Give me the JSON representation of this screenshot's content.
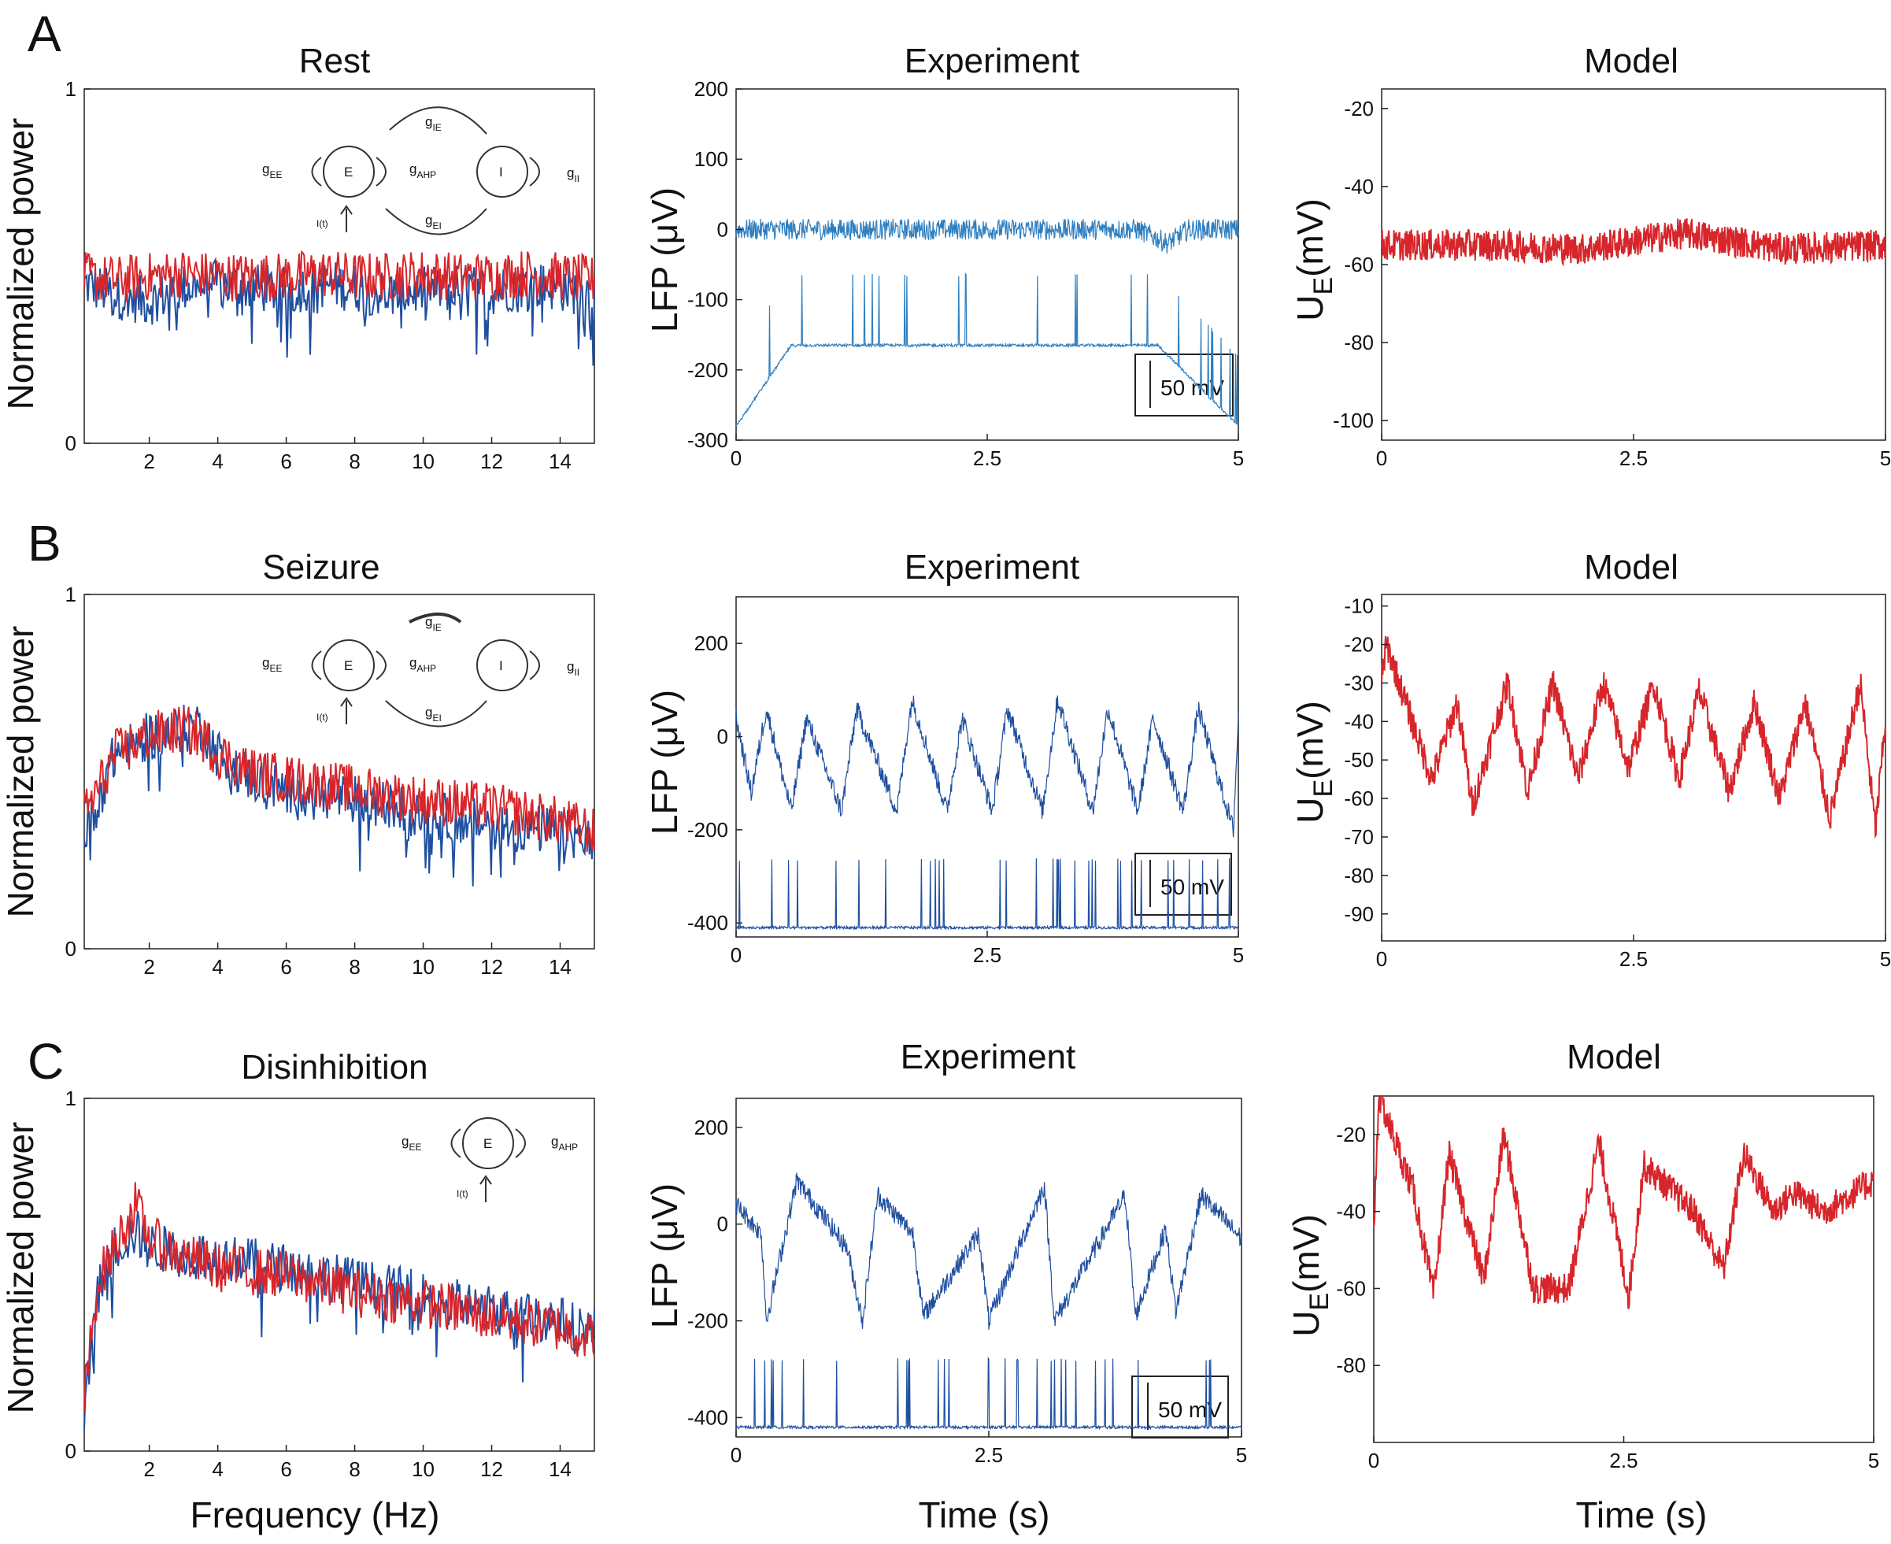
{
  "figure": {
    "colors": {
      "experiment_blue": "#1f4fa0",
      "lfp_blue": "#2f7fc0",
      "model_red": "#d7262b",
      "axis": "#222222"
    },
    "rows": [
      {
        "letter": "A",
        "spectrum": {
          "title": "Rest",
          "ylabel": "Normalized power",
          "xlabel": "",
          "diagram": {
            "nodes": [
              "E",
              "I"
            ],
            "labels": {
              "gEE": "g",
              "gEE_sub": "EE",
              "gAHP": "g",
              "gAHP_sub": "AHP",
              "gIE": "g",
              "gIE_sub": "IE",
              "gEI": "g",
              "gEI_sub": "EI",
              "gII": "g",
              "gII_sub": "II",
              "input": "I(t)"
            }
          }
        },
        "experiment": {
          "title": "Experiment",
          "ylabel": "LFP (μV)",
          "xlabel": "",
          "scalebar": "50 mV"
        },
        "model": {
          "title": "Model",
          "ylabel": "U",
          "ylabel_sub": "E",
          "ylabel_unit": "(mV)",
          "xlabel": ""
        }
      },
      {
        "letter": "B",
        "spectrum": {
          "title": "Seizure",
          "ylabel": "Normalized power",
          "xlabel": "",
          "diagram": {
            "nodes": [
              "E",
              "I"
            ],
            "labels": {
              "gEE": "g",
              "gEE_sub": "EE",
              "gAHP": "g",
              "gAHP_sub": "AHP",
              "gIE": "g",
              "gIE_sub": "IE",
              "gEI": "g",
              "gEI_sub": "EI",
              "gII": "g",
              "gII_sub": "II",
              "input": "I(t)"
            }
          }
        },
        "experiment": {
          "title": "Experiment",
          "ylabel": "LFP (μV)",
          "xlabel": "",
          "scalebar": "50 mV"
        },
        "model": {
          "title": "Model",
          "ylabel": "U",
          "ylabel_sub": "E",
          "ylabel_unit": "(mV)",
          "xlabel": ""
        }
      },
      {
        "letter": "C",
        "spectrum": {
          "title": "Disinhibition",
          "ylabel": "Normalized power",
          "xlabel": "Frequency (Hz)",
          "diagram": {
            "nodes": [
              "E"
            ],
            "labels": {
              "gEE": "g",
              "gEE_sub": "EE",
              "gAHP": "g",
              "gAHP_sub": "AHP",
              "input": "I(t)"
            }
          }
        },
        "experiment": {
          "title": "Experiment",
          "ylabel": "LFP (μV)",
          "xlabel": "Time (s)",
          "scalebar": "50 mV"
        },
        "model": {
          "title": "Model",
          "ylabel": "U",
          "ylabel_sub": "E",
          "ylabel_unit": "(mV)",
          "xlabel": "Time (s)"
        }
      }
    ]
  },
  "chart_data": [
    {
      "type": "line",
      "panel": "A-spectrum",
      "title": "Rest",
      "xlabel": "",
      "ylabel": "Normalized power",
      "xlim": [
        0.1,
        15
      ],
      "ylim": [
        0,
        1
      ],
      "xticks": [
        2,
        4,
        6,
        8,
        10,
        12,
        14
      ],
      "yticks": [
        0,
        1
      ],
      "series": [
        {
          "color": "blue",
          "x": [
            0.1,
            1,
            2,
            3,
            4,
            5,
            6,
            7,
            8,
            9,
            10,
            11,
            12,
            13,
            14,
            15
          ],
          "y": [
            0.45,
            0.42,
            0.4,
            0.44,
            0.45,
            0.44,
            0.43,
            0.45,
            0.44,
            0.42,
            0.43,
            0.44,
            0.43,
            0.45,
            0.44,
            0.42
          ]
        },
        {
          "color": "red",
          "x": [
            0.1,
            1,
            2,
            3,
            4,
            5,
            6,
            7,
            8,
            9,
            10,
            11,
            12,
            13,
            14,
            15
          ],
          "y": [
            0.47,
            0.46,
            0.47,
            0.48,
            0.47,
            0.47,
            0.47,
            0.48,
            0.47,
            0.47,
            0.48,
            0.47,
            0.47,
            0.48,
            0.47,
            0.46
          ]
        }
      ]
    },
    {
      "type": "line",
      "panel": "A-experiment",
      "title": "Experiment",
      "xlabel": "",
      "ylabel": "LFP (μV)",
      "xlim": [
        0,
        5
      ],
      "ylim": [
        -300,
        200
      ],
      "xticks": [
        0,
        2.5,
        5
      ],
      "yticks": [
        -300,
        -200,
        -100,
        0,
        100,
        200
      ],
      "series": [
        {
          "color": "lfp",
          "x": [
            0,
            1,
            2,
            3,
            4,
            4.3,
            4.5,
            5
          ],
          "y": [
            0,
            0,
            0,
            0,
            0,
            -20,
            0,
            0
          ]
        },
        {
          "color": "lfp",
          "x": [
            0,
            0.55,
            1.1,
            1.45,
            1.75,
            2.3,
            4.2,
            5
          ],
          "y": [
            -280,
            -165,
            -165,
            -165,
            -165,
            -165,
            -165,
            -280
          ]
        }
      ]
    },
    {
      "type": "line",
      "panel": "A-model",
      "title": "Model",
      "xlabel": "",
      "ylabel": "U_E(mV)",
      "xlim": [
        0,
        5
      ],
      "ylim": [
        -105,
        -15
      ],
      "xticks": [
        0,
        2.5,
        5
      ],
      "yticks": [
        -100,
        -80,
        -60,
        -40,
        -20
      ],
      "series": [
        {
          "color": "red",
          "x": [
            0,
            1,
            2,
            3,
            4,
            5
          ],
          "y": [
            -55,
            -55,
            -56,
            -52,
            -56,
            -55
          ]
        }
      ]
    },
    {
      "type": "line",
      "panel": "B-spectrum",
      "title": "Seizure",
      "xlabel": "",
      "ylabel": "Normalized power",
      "xlim": [
        0.1,
        15
      ],
      "ylim": [
        0,
        1
      ],
      "xticks": [
        2,
        4,
        6,
        8,
        10,
        12,
        14
      ],
      "yticks": [
        0,
        1
      ],
      "series": [
        {
          "color": "blue",
          "x": [
            0.1,
            0.5,
            1,
            2,
            3,
            3.5,
            4,
            5,
            6,
            8,
            10,
            12,
            14,
            15
          ],
          "y": [
            0.3,
            0.42,
            0.55,
            0.6,
            0.62,
            0.63,
            0.55,
            0.48,
            0.45,
            0.42,
            0.38,
            0.35,
            0.33,
            0.3
          ]
        },
        {
          "color": "red",
          "x": [
            0.1,
            0.5,
            1,
            2,
            3,
            3.5,
            4,
            5,
            6,
            8,
            10,
            12,
            14,
            15
          ],
          "y": [
            0.38,
            0.45,
            0.55,
            0.6,
            0.62,
            0.6,
            0.55,
            0.5,
            0.48,
            0.45,
            0.42,
            0.4,
            0.36,
            0.33
          ]
        }
      ]
    },
    {
      "type": "line",
      "panel": "B-experiment",
      "title": "Experiment",
      "xlabel": "",
      "ylabel": "LFP (μV)",
      "xlim": [
        0,
        5
      ],
      "ylim": [
        -430,
        300
      ],
      "xticks": [
        0,
        2.5,
        5
      ],
      "yticks": [
        -400,
        -200,
        0,
        200
      ],
      "series": [
        {
          "color": "blue",
          "x": [
            0,
            0.15,
            0.3,
            0.55,
            0.7,
            1.05,
            1.2,
            1.6,
            1.75,
            2.1,
            2.25,
            2.55,
            2.7,
            3.05,
            3.2,
            3.55,
            3.7,
            4,
            4.15,
            4.45,
            4.6,
            4.95,
            5
          ],
          "y": [
            40,
            -120,
            60,
            -160,
            40,
            -160,
            60,
            -160,
            80,
            -160,
            40,
            -160,
            60,
            -160,
            80,
            -160,
            60,
            -160,
            40,
            -160,
            60,
            -200,
            40
          ]
        },
        {
          "color": "blue",
          "x": [
            0,
            1,
            2,
            3,
            4,
            5
          ],
          "y": [
            -410,
            -410,
            -410,
            -410,
            -410,
            -410
          ]
        }
      ]
    },
    {
      "type": "line",
      "panel": "B-model",
      "title": "Model",
      "xlabel": "",
      "ylabel": "U_E(mV)",
      "xlim": [
        0,
        5
      ],
      "ylim": [
        -97,
        -7
      ],
      "xticks": [
        0,
        2.5,
        5
      ],
      "yticks": [
        -90,
        -80,
        -70,
        -60,
        -50,
        -40,
        -30,
        -20,
        -10
      ],
      "series": [
        {
          "color": "red",
          "x": [
            0,
            0.05,
            0.3,
            0.5,
            0.75,
            0.9,
            1.25,
            1.45,
            1.7,
            1.95,
            2.2,
            2.45,
            2.7,
            2.95,
            3.15,
            3.45,
            3.7,
            3.95,
            4.2,
            4.45,
            4.75,
            4.9,
            5
          ],
          "y": [
            -28,
            -20,
            -40,
            -55,
            -35,
            -62,
            -30,
            -58,
            -30,
            -55,
            -30,
            -52,
            -30,
            -55,
            -32,
            -58,
            -35,
            -60,
            -35,
            -65,
            -30,
            -68,
            -40
          ]
        }
      ]
    },
    {
      "type": "line",
      "panel": "C-spectrum",
      "title": "Disinhibition",
      "xlabel": "Frequency (Hz)",
      "ylabel": "Normalized power",
      "xlim": [
        0.1,
        15
      ],
      "ylim": [
        0,
        1
      ],
      "xticks": [
        2,
        4,
        6,
        8,
        10,
        12,
        14
      ],
      "yticks": [
        0,
        1
      ],
      "series": [
        {
          "color": "blue",
          "x": [
            0.1,
            0.5,
            1,
            1.6,
            2,
            3,
            4,
            6,
            8,
            10,
            12,
            14,
            15
          ],
          "y": [
            0.1,
            0.45,
            0.58,
            0.62,
            0.58,
            0.56,
            0.55,
            0.52,
            0.48,
            0.44,
            0.4,
            0.37,
            0.34
          ]
        },
        {
          "color": "red",
          "x": [
            0.1,
            0.5,
            1,
            1.6,
            2,
            3,
            4,
            6,
            8,
            10,
            12,
            14,
            15
          ],
          "y": [
            0.15,
            0.48,
            0.58,
            0.7,
            0.6,
            0.55,
            0.52,
            0.5,
            0.45,
            0.42,
            0.38,
            0.35,
            0.32
          ]
        }
      ]
    },
    {
      "type": "line",
      "panel": "C-experiment",
      "title": "Experiment",
      "xlabel": "Time (s)",
      "ylabel": "LFP (μV)",
      "xlim": [
        0,
        5
      ],
      "ylim": [
        -440,
        260
      ],
      "xticks": [
        0,
        2.5,
        5
      ],
      "yticks": [
        -400,
        -200,
        0,
        200
      ],
      "series": [
        {
          "color": "blue",
          "x": [
            0,
            0.25,
            0.3,
            0.6,
            1.1,
            1.25,
            1.4,
            1.75,
            1.85,
            2.4,
            2.5,
            3.05,
            3.15,
            3.85,
            3.95,
            4.25,
            4.35,
            4.6,
            5
          ],
          "y": [
            40,
            -20,
            -200,
            90,
            -50,
            -200,
            60,
            -20,
            -190,
            -20,
            -200,
            80,
            -200,
            60,
            -190,
            -10,
            -180,
            60,
            -30
          ]
        },
        {
          "color": "blue",
          "x": [
            0,
            1,
            2,
            3,
            4,
            5
          ],
          "y": [
            -420,
            -420,
            -420,
            -420,
            -420,
            -420
          ]
        }
      ]
    },
    {
      "type": "line",
      "panel": "C-model",
      "title": "Model",
      "xlabel": "Time (s)",
      "ylabel": "U_E(mV)",
      "xlim": [
        0,
        5
      ],
      "ylim": [
        -100,
        -10
      ],
      "xticks": [
        0,
        2.5,
        5
      ],
      "yticks": [
        -80,
        -60,
        -40,
        -20
      ],
      "series": [
        {
          "color": "red",
          "x": [
            0,
            0.05,
            0.4,
            0.6,
            0.75,
            1.1,
            1.3,
            1.6,
            1.95,
            2.25,
            2.55,
            2.7,
            3,
            3.2,
            3.5,
            3.7,
            4,
            4.2,
            4.5,
            5
          ],
          "y": [
            -45,
            -10,
            -35,
            -62,
            -25,
            -58,
            -20,
            -60,
            -60,
            -22,
            -62,
            -28,
            -35,
            -40,
            -55,
            -25,
            -40,
            -35,
            -40,
            -32
          ]
        }
      ]
    }
  ]
}
